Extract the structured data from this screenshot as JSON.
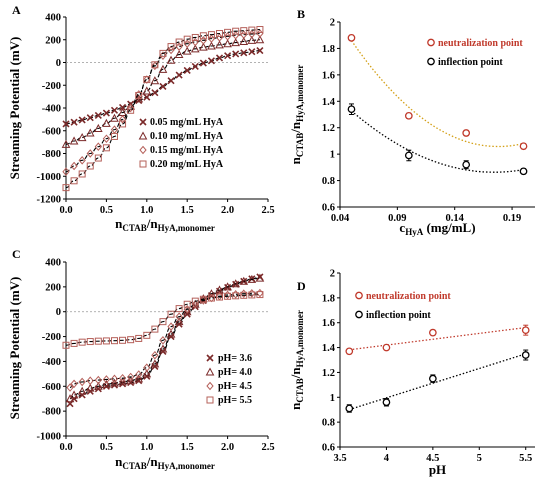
{
  "chart_data": [
    {
      "panel": "A",
      "type": "scatter",
      "xlabel_main": "n",
      "xlabel_sub1": "CTAB",
      "xlabel_mid": "/n",
      "xlabel_sub2": "HyA,monomer",
      "ylabel": "Streaming Potential (mV)",
      "xlim": [
        0,
        2.5
      ],
      "ylim": [
        -1200,
        400
      ],
      "xticks": [
        "0.0",
        "0.5",
        "1.0",
        "1.5",
        "2.0",
        "2.5"
      ],
      "yticks": [
        "-1200",
        "-1000",
        "-800",
        "-600",
        "-400",
        "-200",
        "0",
        "200",
        "400"
      ],
      "legend_position": "bottom-right",
      "series": [
        {
          "name": "0.05 mg/mL HyA",
          "marker": "x",
          "x": [
            0.0,
            0.1,
            0.2,
            0.3,
            0.4,
            0.5,
            0.6,
            0.7,
            0.8,
            0.9,
            1.0,
            1.1,
            1.2,
            1.3,
            1.4,
            1.5,
            1.6,
            1.7,
            1.8,
            1.9,
            2.0,
            2.1,
            2.2,
            2.3,
            2.4
          ],
          "y": [
            -540,
            -525,
            -505,
            -485,
            -465,
            -445,
            -420,
            -395,
            -365,
            -335,
            -305,
            -265,
            -210,
            -160,
            -110,
            -70,
            -35,
            -5,
            15,
            40,
            60,
            75,
            85,
            95,
            105
          ]
        },
        {
          "name": "0.10 mg/mL HyA",
          "marker": "triangle",
          "x": [
            0.0,
            0.1,
            0.2,
            0.3,
            0.4,
            0.5,
            0.6,
            0.7,
            0.8,
            0.9,
            1.0,
            1.1,
            1.2,
            1.3,
            1.4,
            1.5,
            1.6,
            1.7,
            1.8,
            1.9,
            2.0,
            2.1,
            2.2,
            2.3,
            2.4
          ],
          "y": [
            -720,
            -690,
            -660,
            -620,
            -580,
            -535,
            -490,
            -440,
            -385,
            -320,
            -250,
            -160,
            -60,
            20,
            70,
            100,
            120,
            135,
            145,
            155,
            165,
            175,
            185,
            195,
            200
          ]
        },
        {
          "name": "0.15 mg/mL HyA",
          "marker": "diamond",
          "x": [
            0.0,
            0.1,
            0.2,
            0.3,
            0.4,
            0.5,
            0.6,
            0.7,
            0.8,
            0.9,
            1.0,
            1.1,
            1.2,
            1.3,
            1.4,
            1.5,
            1.6,
            1.7,
            1.8,
            1.9,
            2.0,
            2.1,
            2.2,
            2.3,
            2.4
          ],
          "y": [
            -960,
            -910,
            -860,
            -800,
            -740,
            -670,
            -590,
            -500,
            -400,
            -280,
            -150,
            -30,
            60,
            110,
            140,
            165,
            180,
            195,
            210,
            220,
            230,
            240,
            245,
            250,
            255
          ]
        },
        {
          "name": "0.20 mg/mL HyA",
          "marker": "square",
          "x": [
            0.0,
            0.1,
            0.2,
            0.3,
            0.4,
            0.5,
            0.6,
            0.7,
            0.8,
            0.9,
            1.0,
            1.1,
            1.2,
            1.3,
            1.4,
            1.5,
            1.6,
            1.7,
            1.8,
            1.9,
            2.0,
            2.1,
            2.2,
            2.3,
            2.4
          ],
          "y": [
            -1100,
            -1040,
            -980,
            -910,
            -840,
            -750,
            -650,
            -540,
            -420,
            -290,
            -150,
            -20,
            80,
            140,
            180,
            205,
            220,
            235,
            245,
            255,
            265,
            275,
            280,
            285,
            290
          ]
        }
      ]
    },
    {
      "panel": "B",
      "type": "scatter",
      "xlabel_main": "c",
      "xlabel_sub": "HyA",
      "xlabel_rest": " (mg/mL)",
      "ylabel_main": "n",
      "ylabel_sub1": "CTAB",
      "ylabel_mid": "/n",
      "ylabel_sub2": "HyA,monomer",
      "xlim": [
        0.04,
        0.21
      ],
      "ylim": [
        0.6,
        2.0
      ],
      "xticks": [
        "0.04",
        "0.09",
        "0.14",
        "0.19"
      ],
      "yticks": [
        "0.6",
        "0.8",
        "1",
        "1.2",
        "1.4",
        "1.6",
        "1.8",
        "2"
      ],
      "legend_position": "top-right",
      "series": [
        {
          "name": "neutralization point",
          "color": "#c0392b",
          "trend_color": "#d4a017",
          "x": [
            0.05,
            0.1,
            0.15,
            0.2
          ],
          "y": [
            1.88,
            1.29,
            1.16,
            1.06
          ],
          "err": [
            0.02,
            0.02,
            0.02,
            0.02
          ]
        },
        {
          "name": "inflection point",
          "color": "#000000",
          "trend_color": "#000000",
          "x": [
            0.05,
            0.1,
            0.15,
            0.2
          ],
          "y": [
            1.34,
            0.99,
            0.92,
            0.87
          ],
          "err": [
            0.04,
            0.04,
            0.03,
            0.02
          ]
        }
      ]
    },
    {
      "panel": "C",
      "type": "scatter",
      "xlabel_main": "n",
      "xlabel_sub1": "CTAB",
      "xlabel_mid": "/n",
      "xlabel_sub2": "HyA,monomer",
      "ylabel": "Streaming Potential (mV)",
      "xlim": [
        0,
        2.5
      ],
      "ylim": [
        -1000,
        400
      ],
      "xticks": [
        "0.0",
        "0.5",
        "1.0",
        "1.5",
        "2.0",
        "2.5"
      ],
      "yticks": [
        "-1000",
        "-800",
        "-600",
        "-400",
        "-200",
        "0",
        "200",
        "400"
      ],
      "legend_position": "bottom-right",
      "series": [
        {
          "name": "pH= 3.6",
          "marker": "x",
          "x": [
            0.05,
            0.1,
            0.2,
            0.3,
            0.4,
            0.5,
            0.6,
            0.7,
            0.8,
            0.9,
            1.0,
            1.1,
            1.2,
            1.3,
            1.4,
            1.5,
            1.6,
            1.7,
            1.8,
            1.9,
            2.0,
            2.1,
            2.2,
            2.3,
            2.4
          ],
          "y": [
            -740,
            -700,
            -670,
            -640,
            -620,
            -600,
            -590,
            -580,
            -570,
            -555,
            -520,
            -440,
            -320,
            -200,
            -100,
            -20,
            40,
            90,
            130,
            165,
            195,
            220,
            245,
            265,
            280
          ]
        },
        {
          "name": "pH= 4.0",
          "marker": "triangle",
          "x": [
            0.05,
            0.1,
            0.2,
            0.3,
            0.4,
            0.5,
            0.6,
            0.7,
            0.8,
            0.9,
            1.0,
            1.1,
            1.2,
            1.3,
            1.4,
            1.5,
            1.6,
            1.7,
            1.8,
            1.9,
            2.0,
            2.1,
            2.2,
            2.3,
            2.4
          ],
          "y": [
            -700,
            -670,
            -640,
            -615,
            -600,
            -585,
            -575,
            -565,
            -555,
            -540,
            -500,
            -420,
            -300,
            -180,
            -80,
            0,
            60,
            105,
            145,
            175,
            200,
            225,
            245,
            260,
            270
          ]
        },
        {
          "name": "pH= 4.5",
          "marker": "diamond",
          "x": [
            0.05,
            0.1,
            0.2,
            0.3,
            0.4,
            0.5,
            0.6,
            0.7,
            0.8,
            0.9,
            1.0,
            1.1,
            1.2,
            1.3,
            1.4,
            1.5,
            1.6,
            1.7,
            1.8,
            1.9,
            2.0,
            2.1,
            2.2,
            2.3,
            2.4
          ],
          "y": [
            -610,
            -580,
            -565,
            -555,
            -550,
            -545,
            -540,
            -535,
            -525,
            -505,
            -450,
            -350,
            -230,
            -120,
            -40,
            20,
            60,
            90,
            110,
            125,
            135,
            140,
            145,
            148,
            150
          ]
        },
        {
          "name": "pH= 5.5",
          "marker": "square",
          "x": [
            0.0,
            0.1,
            0.2,
            0.3,
            0.4,
            0.5,
            0.6,
            0.7,
            0.8,
            0.9,
            1.0,
            1.1,
            1.2,
            1.3,
            1.4,
            1.5,
            1.6,
            1.7,
            1.8,
            1.9,
            2.0,
            2.1,
            2.2,
            2.3,
            2.4
          ],
          "y": [
            -270,
            -255,
            -245,
            -240,
            -237,
            -235,
            -233,
            -230,
            -225,
            -215,
            -190,
            -140,
            -80,
            -20,
            25,
            60,
            85,
            100,
            110,
            118,
            124,
            128,
            132,
            135,
            138
          ]
        }
      ]
    },
    {
      "panel": "D",
      "type": "scatter",
      "xlabel": "pH",
      "ylabel_main": "n",
      "ylabel_sub1": "CTAB",
      "ylabel_mid": "/n",
      "ylabel_sub2": "HyA,monomer",
      "xlim": [
        3.5,
        5.6
      ],
      "ylim": [
        0.6,
        2.0
      ],
      "xticks": [
        "3.5",
        "4",
        "4.5",
        "5",
        "5.5"
      ],
      "yticks": [
        "0.6",
        "0.8",
        "1",
        "1.2",
        "1.4",
        "1.6",
        "1.8",
        "2"
      ],
      "legend_position": "top-left",
      "series": [
        {
          "name": "neutralization point",
          "color": "#c0392b",
          "trend_color": "#c0392b",
          "x": [
            3.6,
            4.0,
            4.5,
            5.5
          ],
          "y": [
            1.37,
            1.4,
            1.52,
            1.54
          ],
          "err": [
            0.02,
            0.02,
            0.02,
            0.04
          ]
        },
        {
          "name": "inflection point",
          "color": "#000000",
          "trend_color": "#000000",
          "x": [
            3.6,
            4.0,
            4.5,
            5.5
          ],
          "y": [
            0.91,
            0.96,
            1.15,
            1.34
          ],
          "err": [
            0.03,
            0.03,
            0.03,
            0.04
          ]
        }
      ]
    }
  ],
  "colors": {
    "marker_dark": "#7b2a2a",
    "marker_light": "#b5605a",
    "fit_line": "#000000",
    "zero_line": "#999999"
  }
}
